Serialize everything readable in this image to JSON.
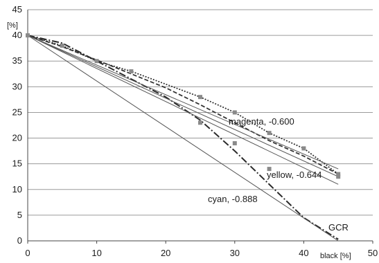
{
  "chart_data": {
    "type": "line",
    "xlim": [
      0,
      50
    ],
    "ylim": [
      0,
      45
    ],
    "x_ticks": [
      "0",
      "10",
      "20",
      "30",
      "40",
      "50"
    ],
    "y_ticks": [
      "0",
      "5",
      "10",
      "15",
      "20",
      "25",
      "30",
      "35",
      "40",
      "45"
    ],
    "xlabel": "black [%]",
    "ylabel": "[%]",
    "grid": "horizontal",
    "legend": "none",
    "annotations": {
      "magenta": "magenta, -0.600",
      "yellow": "yellow, -0.644",
      "cyan": "cyan, -0.888",
      "gcr": "GCR"
    },
    "series": [
      {
        "name": "magenta, -0.600",
        "style": "dotted",
        "points": [
          [
            0,
            40
          ],
          [
            5,
            38
          ],
          [
            10,
            35
          ],
          [
            15,
            33
          ],
          [
            20,
            30.5
          ],
          [
            25,
            28
          ],
          [
            30,
            25
          ],
          [
            35,
            21
          ],
          [
            40,
            18
          ],
          [
            45,
            13
          ]
        ]
      },
      {
        "name": "yellow, -0.644",
        "style": "dashed",
        "points": [
          [
            0,
            40
          ],
          [
            5,
            37.8
          ],
          [
            10,
            35.2
          ],
          [
            15,
            32.5
          ],
          [
            20,
            29.8
          ],
          [
            25,
            26.5
          ],
          [
            30,
            23
          ],
          [
            35,
            19.5
          ],
          [
            40,
            16.5
          ],
          [
            45,
            13
          ]
        ]
      },
      {
        "name": "cyan, -0.888",
        "style": "dash-dot",
        "points": [
          [
            0,
            40
          ],
          [
            5,
            38.5
          ],
          [
            10,
            35
          ],
          [
            15,
            31.5
          ],
          [
            20,
            28
          ],
          [
            25,
            23.5
          ],
          [
            30,
            17.5
          ],
          [
            35,
            11
          ],
          [
            40,
            4.5
          ],
          [
            45,
            0.3
          ]
        ]
      },
      {
        "style": "solid",
        "points": [
          [
            0,
            40
          ],
          [
            45,
            0
          ]
        ]
      },
      {
        "style": "solid",
        "points": [
          [
            0,
            40
          ],
          [
            45,
            11
          ]
        ]
      },
      {
        "style": "solid",
        "points": [
          [
            0,
            40
          ],
          [
            45,
            14
          ]
        ]
      },
      {
        "style": "solid",
        "points": [
          [
            0,
            40
          ],
          [
            45,
            12.5
          ]
        ]
      }
    ],
    "markers": [
      [
        0,
        40
      ],
      [
        5,
        38
      ],
      [
        10,
        35
      ],
      [
        15,
        33
      ],
      [
        25,
        28
      ],
      [
        25,
        23
      ],
      [
        30,
        25
      ],
      [
        30,
        19
      ],
      [
        35,
        21
      ],
      [
        35,
        14
      ],
      [
        40,
        18
      ],
      [
        45,
        13
      ],
      [
        45,
        12.5
      ]
    ]
  }
}
